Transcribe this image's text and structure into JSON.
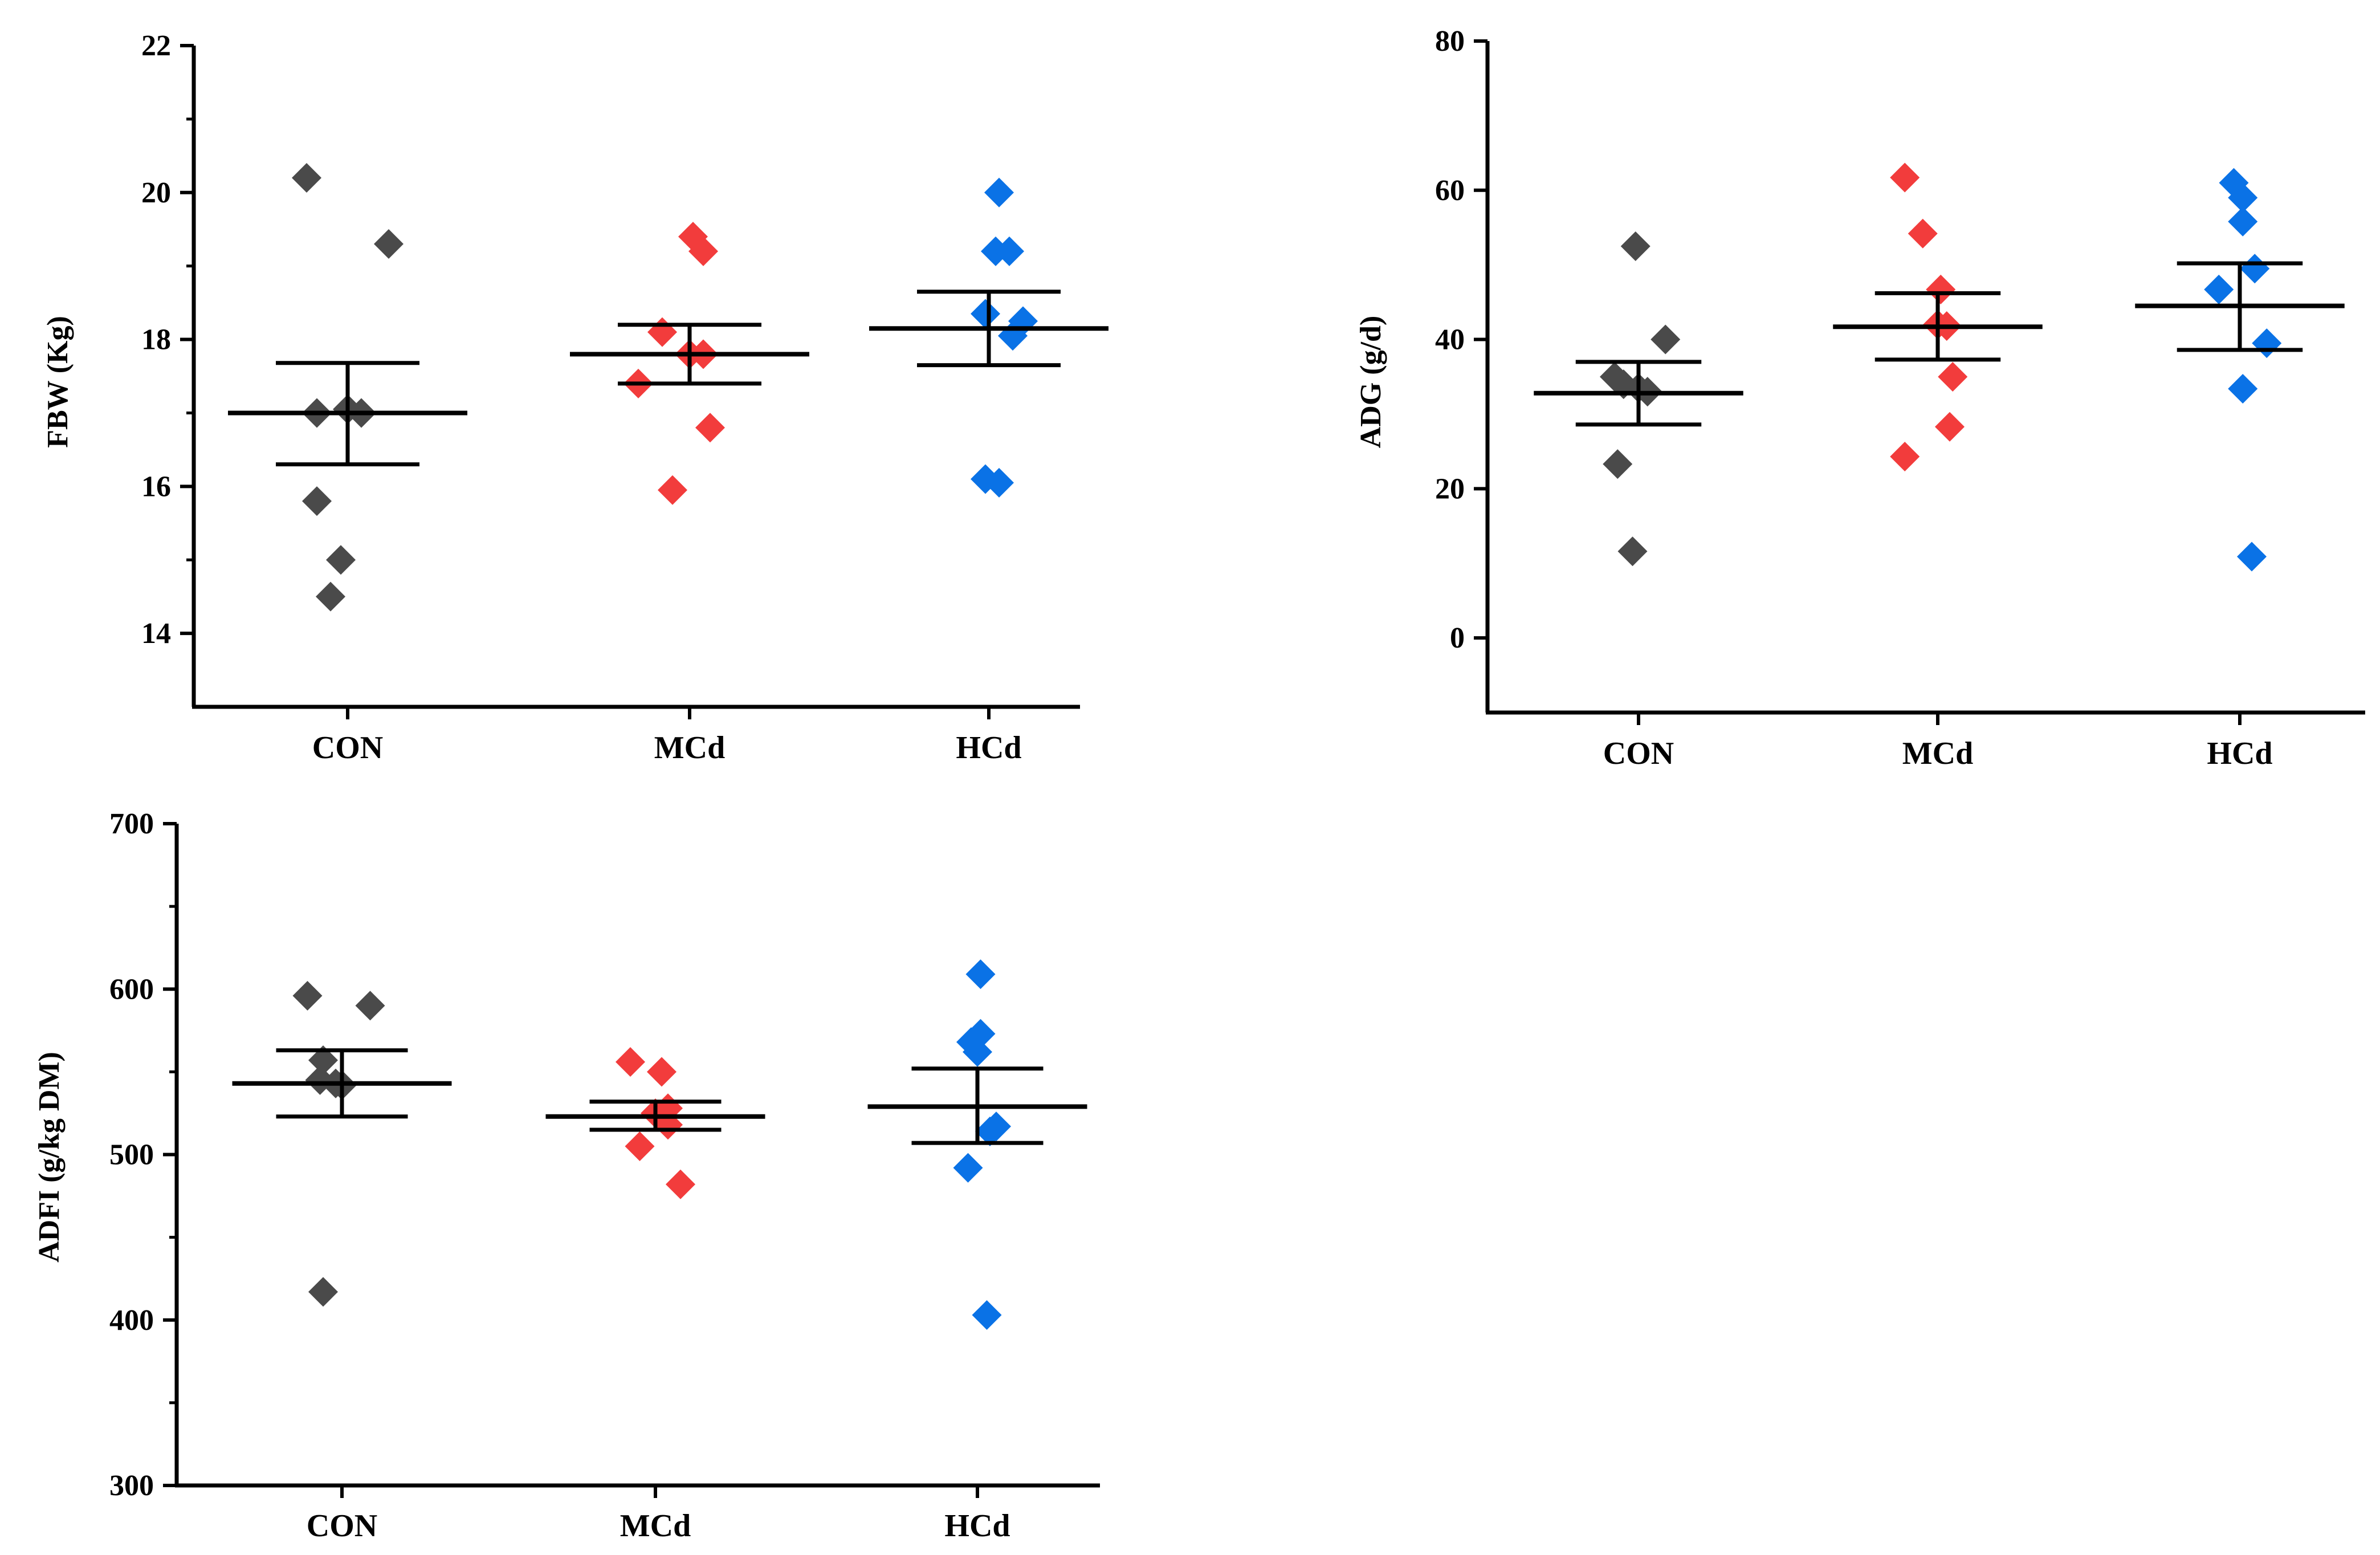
{
  "colors": {
    "axis": "#000000",
    "mean_bar": "#000000",
    "CON": "#4a4a4a",
    "MCd": "#f23c3c",
    "HCd": "#0a72e6"
  },
  "chart_data": [
    {
      "type": "scatter",
      "ylabel": "FBW (Kg)",
      "categories": [
        "CON",
        "MCd",
        "HCd"
      ],
      "ylim": [
        13,
        22
      ],
      "yticks": [
        14,
        16,
        18,
        20,
        22
      ],
      "ytick_labels": [
        "14",
        "16",
        "18",
        "20",
        "22"
      ],
      "groups": [
        {
          "name": "CON",
          "mean": 17.0,
          "sem_upper": 17.68,
          "sem_lower": 16.3,
          "points": [
            {
              "dx": -0.12,
              "y": 20.2
            },
            {
              "dx": 0.12,
              "y": 19.3
            },
            {
              "dx": -0.09,
              "y": 17.0
            },
            {
              "dx": 0.0,
              "y": 17.05
            },
            {
              "dx": 0.04,
              "y": 17.0
            },
            {
              "dx": -0.09,
              "y": 15.8
            },
            {
              "dx": -0.02,
              "y": 15.0
            },
            {
              "dx": -0.05,
              "y": 14.5
            }
          ]
        },
        {
          "name": "MCd",
          "mean": 17.8,
          "sem_upper": 18.2,
          "sem_lower": 17.4,
          "points": [
            {
              "dx": 0.01,
              "y": 19.4
            },
            {
              "dx": 0.04,
              "y": 19.2
            },
            {
              "dx": -0.08,
              "y": 18.1
            },
            {
              "dx": 0.0,
              "y": 17.8
            },
            {
              "dx": 0.04,
              "y": 17.8
            },
            {
              "dx": -0.15,
              "y": 17.4
            },
            {
              "dx": 0.06,
              "y": 16.8
            },
            {
              "dx": -0.05,
              "y": 15.95
            }
          ]
        },
        {
          "name": "HCd",
          "mean": 18.15,
          "sem_upper": 18.65,
          "sem_lower": 17.65,
          "points": [
            {
              "dx": 0.03,
              "y": 20.0
            },
            {
              "dx": 0.02,
              "y": 19.2
            },
            {
              "dx": 0.06,
              "y": 19.2
            },
            {
              "dx": -0.01,
              "y": 18.35
            },
            {
              "dx": 0.1,
              "y": 18.25
            },
            {
              "dx": 0.07,
              "y": 18.05
            },
            {
              "dx": -0.01,
              "y": 16.1
            },
            {
              "dx": 0.03,
              "y": 16.05
            }
          ]
        }
      ]
    },
    {
      "type": "scatter",
      "ylabel": "ADG (g/d)",
      "categories": [
        "CON",
        "MCd",
        "HCd"
      ],
      "ylim": [
        -10,
        80
      ],
      "yticks": [
        0,
        20,
        40,
        60,
        80
      ],
      "ytick_labels": [
        "0",
        "20",
        "40",
        "60",
        "80"
      ],
      "groups": [
        {
          "name": "CON",
          "mean": 32.8,
          "sem_upper": 37.0,
          "sem_lower": 28.6,
          "points": [
            {
              "dx": -0.01,
              "y": 52.5
            },
            {
              "dx": 0.09,
              "y": 40.0
            },
            {
              "dx": -0.08,
              "y": 35.0
            },
            {
              "dx": -0.05,
              "y": 34.0
            },
            {
              "dx": 0.0,
              "y": 33.5
            },
            {
              "dx": 0.03,
              "y": 33.0
            },
            {
              "dx": -0.07,
              "y": 23.3
            },
            {
              "dx": -0.02,
              "y": 11.6
            }
          ]
        },
        {
          "name": "MCd",
          "mean": 41.7,
          "sem_upper": 46.2,
          "sem_lower": 37.3,
          "points": [
            {
              "dx": -0.11,
              "y": 61.7
            },
            {
              "dx": -0.05,
              "y": 54.2
            },
            {
              "dx": 0.01,
              "y": 46.7
            },
            {
              "dx": 0.0,
              "y": 42.0
            },
            {
              "dx": 0.03,
              "y": 41.8
            },
            {
              "dx": 0.05,
              "y": 35.0
            },
            {
              "dx": 0.04,
              "y": 28.3
            },
            {
              "dx": -0.11,
              "y": 24.3
            }
          ]
        },
        {
          "name": "HCd",
          "mean": 44.5,
          "sem_upper": 50.2,
          "sem_lower": 38.6,
          "points": [
            {
              "dx": -0.02,
              "y": 61.0
            },
            {
              "dx": 0.01,
              "y": 59.0
            },
            {
              "dx": 0.01,
              "y": 55.8
            },
            {
              "dx": 0.05,
              "y": 49.5
            },
            {
              "dx": -0.07,
              "y": 46.7
            },
            {
              "dx": 0.09,
              "y": 39.5
            },
            {
              "dx": 0.01,
              "y": 33.4
            },
            {
              "dx": 0.04,
              "y": 10.9
            }
          ]
        }
      ]
    },
    {
      "type": "scatter",
      "ylabel": "ADFI (g/kg DM)",
      "categories": [
        "CON",
        "MCd",
        "HCd"
      ],
      "ylim": [
        300,
        700
      ],
      "yticks": [
        300,
        400,
        500,
        600,
        700
      ],
      "ytick_labels": [
        "300",
        "400",
        "500",
        "600",
        "700"
      ],
      "groups": [
        {
          "name": "CON",
          "mean": 543,
          "sem_upper": 563,
          "sem_lower": 523,
          "points": [
            {
              "dx": -0.11,
              "y": 596
            },
            {
              "dx": 0.09,
              "y": 590
            },
            {
              "dx": -0.06,
              "y": 557
            },
            {
              "dx": -0.07,
              "y": 545
            },
            {
              "dx": -0.02,
              "y": 543
            },
            {
              "dx": 0.0,
              "y": 542
            },
            {
              "dx": -0.06,
              "y": 417
            }
          ]
        },
        {
          "name": "MCd",
          "mean": 523,
          "sem_upper": 532,
          "sem_lower": 515,
          "points": [
            {
              "dx": -0.08,
              "y": 556
            },
            {
              "dx": 0.02,
              "y": 550
            },
            {
              "dx": 0.04,
              "y": 528
            },
            {
              "dx": 0.0,
              "y": 525
            },
            {
              "dx": 0.04,
              "y": 518
            },
            {
              "dx": -0.05,
              "y": 505
            },
            {
              "dx": 0.08,
              "y": 482
            }
          ]
        },
        {
          "name": "HCd",
          "mean": 529,
          "sem_upper": 552,
          "sem_lower": 507,
          "points": [
            {
              "dx": 0.01,
              "y": 609
            },
            {
              "dx": 0.01,
              "y": 573
            },
            {
              "dx": -0.02,
              "y": 568
            },
            {
              "dx": 0.0,
              "y": 562
            },
            {
              "dx": 0.06,
              "y": 517
            },
            {
              "dx": 0.04,
              "y": 514
            },
            {
              "dx": -0.03,
              "y": 492
            },
            {
              "dx": 0.03,
              "y": 403
            }
          ]
        }
      ]
    }
  ]
}
